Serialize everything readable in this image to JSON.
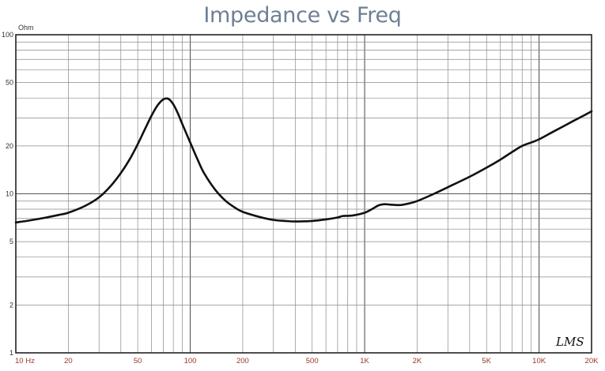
{
  "chart_data": {
    "type": "line",
    "title": "Impedance vs Freq",
    "ylabel": "Ohm",
    "xscale": "log",
    "yscale": "log",
    "xlim": [
      10,
      20000
    ],
    "ylim": [
      1,
      100
    ],
    "grid": true,
    "x_tick_labels": [
      {
        "value": 10,
        "label": "10 Hz"
      },
      {
        "value": 20,
        "label": "20"
      },
      {
        "value": 50,
        "label": "50"
      },
      {
        "value": 100,
        "label": "100"
      },
      {
        "value": 200,
        "label": "200"
      },
      {
        "value": 500,
        "label": "500"
      },
      {
        "value": 1000,
        "label": "1K"
      },
      {
        "value": 2000,
        "label": "2K"
      },
      {
        "value": 5000,
        "label": "5K"
      },
      {
        "value": 10000,
        "label": "10K"
      },
      {
        "value": 20000,
        "label": "20K"
      }
    ],
    "y_tick_labels": [
      {
        "value": 100,
        "label": "100"
      },
      {
        "value": 50,
        "label": "50"
      },
      {
        "value": 20,
        "label": "20"
      },
      {
        "value": 10,
        "label": "10"
      },
      {
        "value": 5,
        "label": "5"
      },
      {
        "value": 2,
        "label": "2"
      },
      {
        "value": 1,
        "label": "1"
      }
    ],
    "series": [
      {
        "color": "#111111",
        "points": [
          [
            10,
            6.6
          ],
          [
            12,
            6.8
          ],
          [
            15,
            7.1
          ],
          [
            18,
            7.4
          ],
          [
            20,
            7.6
          ],
          [
            25,
            8.4
          ],
          [
            30,
            9.5
          ],
          [
            35,
            11.2
          ],
          [
            40,
            13.5
          ],
          [
            45,
            16.5
          ],
          [
            50,
            20.5
          ],
          [
            55,
            25.5
          ],
          [
            60,
            31
          ],
          [
            65,
            36
          ],
          [
            70,
            39.2
          ],
          [
            75,
            39.5
          ],
          [
            80,
            36.5
          ],
          [
            85,
            32
          ],
          [
            90,
            27.5
          ],
          [
            100,
            21
          ],
          [
            110,
            16.5
          ],
          [
            120,
            13.5
          ],
          [
            140,
            10.5
          ],
          [
            160,
            9.0
          ],
          [
            180,
            8.2
          ],
          [
            200,
            7.7
          ],
          [
            250,
            7.15
          ],
          [
            300,
            6.85
          ],
          [
            350,
            6.75
          ],
          [
            400,
            6.7
          ],
          [
            500,
            6.75
          ],
          [
            600,
            6.9
          ],
          [
            700,
            7.1
          ],
          [
            750,
            7.25
          ],
          [
            850,
            7.3
          ],
          [
            1000,
            7.6
          ],
          [
            1100,
            8.0
          ],
          [
            1200,
            8.45
          ],
          [
            1300,
            8.6
          ],
          [
            1400,
            8.55
          ],
          [
            1600,
            8.5
          ],
          [
            1800,
            8.7
          ],
          [
            2000,
            9.0
          ],
          [
            2500,
            10.0
          ],
          [
            3000,
            11.0
          ],
          [
            4000,
            12.8
          ],
          [
            5000,
            14.6
          ],
          [
            6000,
            16.4
          ],
          [
            7000,
            18.3
          ],
          [
            8000,
            20.0
          ],
          [
            9000,
            21.0
          ],
          [
            10000,
            22.0
          ],
          [
            12000,
            24.5
          ],
          [
            14000,
            26.8
          ],
          [
            16000,
            29.0
          ],
          [
            18000,
            31.0
          ],
          [
            20000,
            33.0
          ]
        ]
      }
    ],
    "watermark": "LMS"
  }
}
